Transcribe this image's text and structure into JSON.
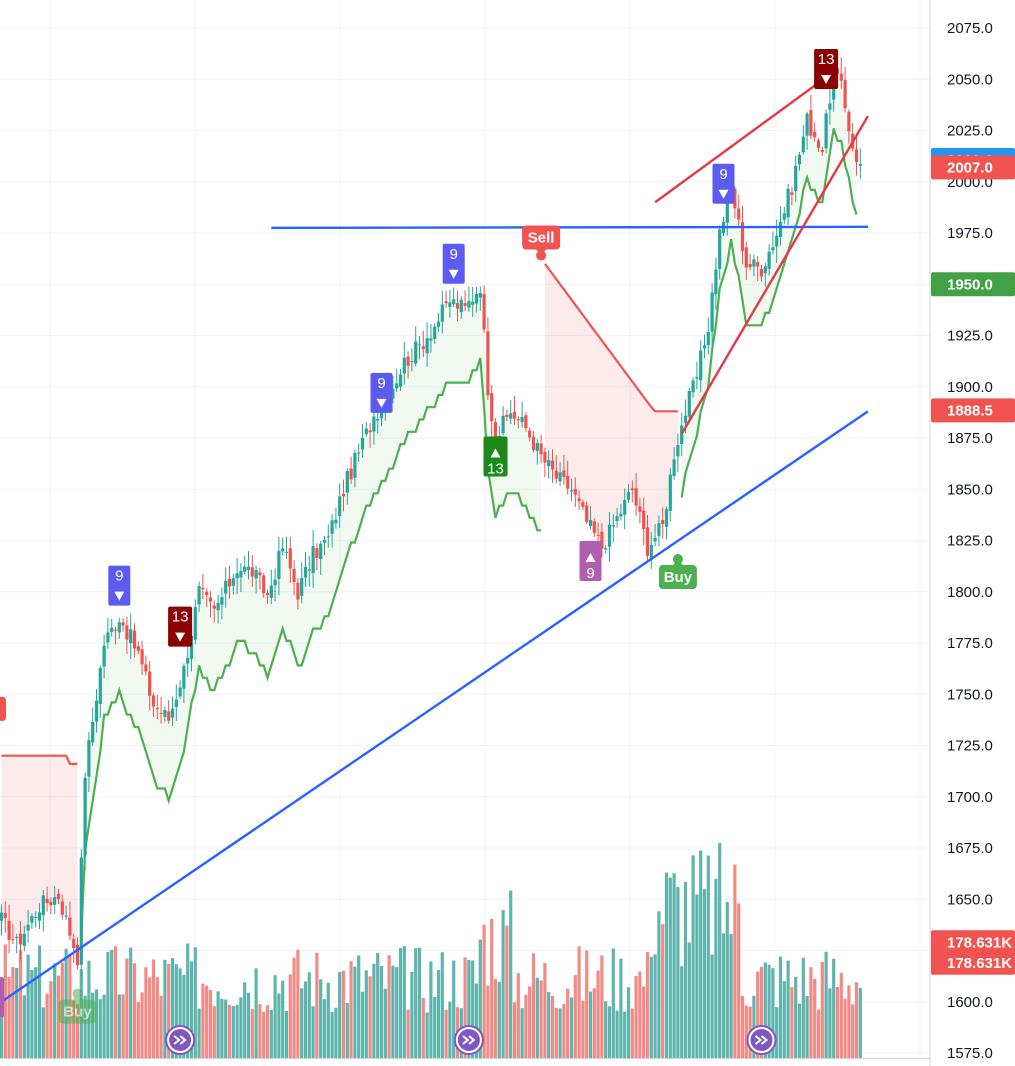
{
  "chart_data": {
    "type": "candlestick",
    "ylim": [
      1575,
      2083
    ],
    "y_ticks": [
      "2075.0",
      "2050.0",
      "2025.0",
      "2000.0",
      "1975.0",
      "1950.0",
      "1925.0",
      "1900.0",
      "1875.0",
      "1850.0",
      "1825.0",
      "1800.0",
      "1775.0",
      "1750.0",
      "1725.0",
      "1700.0",
      "1675.0",
      "1650.0",
      "1625.0",
      "1600.0",
      "1575.0"
    ],
    "y_tick_values": [
      2075,
      2050,
      2025,
      2000,
      1975,
      1950,
      1925,
      1900,
      1875,
      1850,
      1825,
      1800,
      1775,
      1750,
      1725,
      1700,
      1675,
      1650,
      1625,
      1600,
      1575
    ],
    "price_badges": [
      {
        "label": "2010.6",
        "value": 2010.6,
        "color": "#2196f3"
      },
      {
        "label": "2007.0",
        "value": 2007.0,
        "color": "#f05350"
      },
      {
        "label": "1950.0",
        "value": 1950.0,
        "color": "#43a047"
      },
      {
        "label": "1888.5",
        "value": 1888.5,
        "color": "#f05350"
      },
      {
        "label": "178.631K",
        "value": 1629,
        "color": "#f05350"
      },
      {
        "label": "178.631K",
        "value": 1619,
        "color": "#f05350"
      }
    ],
    "colors": {
      "up": "#26a69a",
      "down": "#ef5350",
      "volume_up": "#5fb5ad",
      "volume_down": "#f28b86"
    },
    "supertrend": {
      "up_color": "#4caf50",
      "down_color": "#f05350",
      "up_fill": "rgba(76,175,80,0.08)",
      "down_fill": "rgba(240,83,80,0.12)"
    },
    "trend_lines": [
      {
        "color": "#2962ff",
        "from": {
          "bar": 71,
          "price": 1977.5
        },
        "to": {
          "bar": 228,
          "price": 1978
        }
      },
      {
        "color": "#2962ff",
        "from": {
          "bar": 0,
          "price": 1600
        },
        "to": {
          "bar": 228,
          "price": 1888
        }
      },
      {
        "color": "#e53946",
        "from": {
          "bar": 172,
          "price": 1990
        },
        "to": {
          "bar": 220,
          "price": 2055
        }
      },
      {
        "color": "#e53946",
        "from": {
          "bar": 179,
          "price": 1877
        },
        "to": {
          "bar": 228,
          "price": 2032
        }
      }
    ],
    "markers": [
      {
        "text": "9",
        "arrow": "down",
        "bar": 31,
        "price": 1803,
        "color": "#5b5bf0"
      },
      {
        "text": "13",
        "arrow": "down",
        "bar": 47,
        "price": 1783,
        "color": "#8b0000"
      },
      {
        "text": "9",
        "arrow": "down",
        "bar": 100,
        "price": 1897,
        "color": "#5b5bf0"
      },
      {
        "text": "9",
        "arrow": "down",
        "bar": 119,
        "price": 1960,
        "color": "#5b5bf0"
      },
      {
        "text": "13",
        "arrow": "up",
        "bar": 130,
        "price": 1866,
        "color": "#1b8a1b"
      },
      {
        "text": "9",
        "arrow": "up",
        "bar": 155,
        "price": 1815,
        "color": "#b05fb0"
      },
      {
        "text": "9",
        "arrow": "down",
        "bar": 190,
        "price": 1999,
        "color": "#5b5bf0"
      },
      {
        "text": "13",
        "arrow": "down",
        "bar": 217,
        "price": 2055,
        "color": "#8b0000"
      }
    ],
    "signals": [
      {
        "label": "Buy",
        "bar": 20,
        "price": 1602,
        "color": "#4caf50",
        "faded": true
      },
      {
        "label": "Sell",
        "bar": 142,
        "price": 1964,
        "color": "#f05350",
        "faded": false
      },
      {
        "label": "Buy",
        "bar": 178,
        "price": 1814,
        "color": "#4caf50",
        "faded": false
      }
    ],
    "left_edge_sell_marker": {
      "bar": -1,
      "price": 1737
    },
    "session_icons": [
      {
        "bar": 47
      },
      {
        "bar": 123
      },
      {
        "bar": 200
      }
    ]
  }
}
